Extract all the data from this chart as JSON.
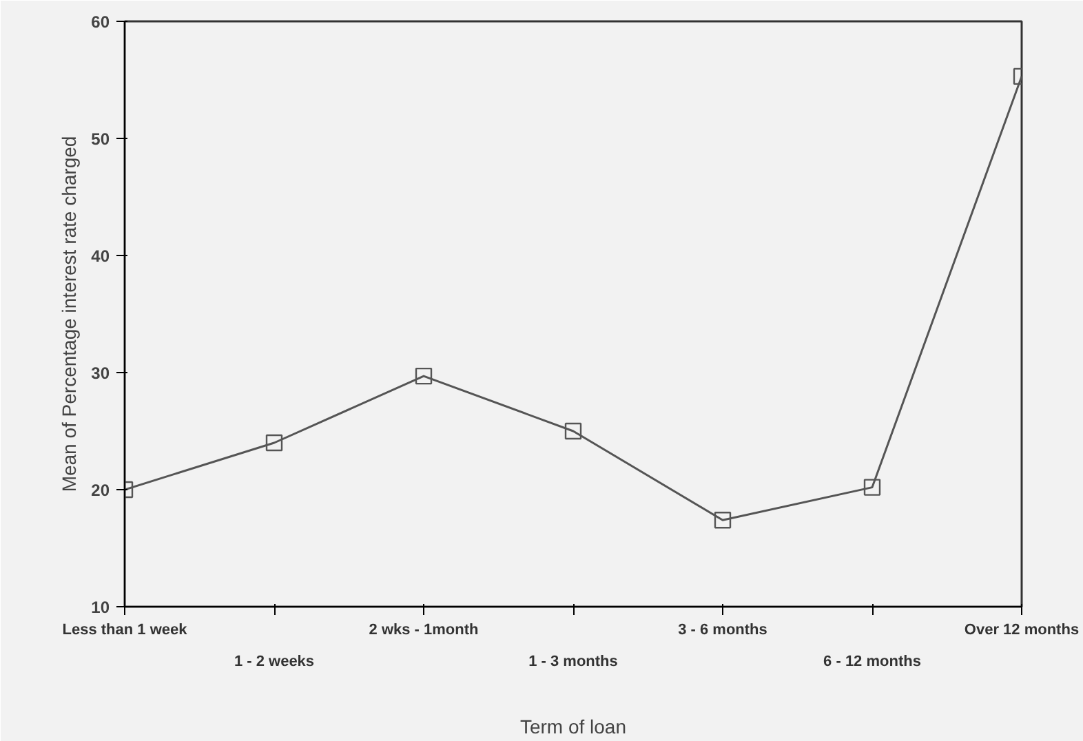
{
  "chart_data": {
    "type": "line",
    "xlabel": "Term of loan",
    "ylabel": "Mean of Percentage interest rate charged",
    "categories": [
      "Less than 1 week",
      "1 - 2 weeks",
      "2 wks - 1month",
      "1 - 3 months",
      "3 - 6 months",
      "6 - 12 months",
      "Over 12 months"
    ],
    "series": [
      {
        "color": "#555555",
        "values": [
          20,
          24,
          29.7,
          25,
          17.4,
          20.2,
          55.3
        ]
      }
    ],
    "ylim": [
      10,
      60
    ],
    "yticks": [
      10,
      20,
      30,
      40,
      50,
      60
    ],
    "grid": false,
    "marker": "square",
    "line_style": "solid"
  }
}
